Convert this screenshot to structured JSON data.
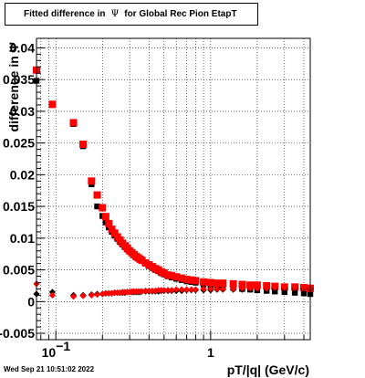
{
  "title": {
    "prefix": "Fitted difference in",
    "symbol": "Ψ",
    "suffix": "for Global Rec Pion EtapT"
  },
  "timestamp": "Wed Sep 21 10:51:02 2022",
  "chart_data": {
    "type": "scatter",
    "title": "Fitted difference in Ψ for Global Rec Pion EtapT",
    "xlabel": "pT/|q| (GeV/c)",
    "ylabel": "difference in Ψ",
    "x_scale": "log",
    "xlim": [
      0.075,
      4.4
    ],
    "ylim": [
      -0.006,
      0.0415
    ],
    "grid": true,
    "y_ticks": [
      -0.005,
      0,
      0.005,
      0.01,
      0.015,
      0.02,
      0.025,
      0.03,
      0.035,
      0.04
    ],
    "y_tick_labels": [
      "-0.005",
      "0",
      "0.005",
      "0.01",
      "0.015",
      "0.02",
      "0.025",
      "0.03",
      "0.035",
      "0.04"
    ],
    "x_tick_labels": [
      {
        "value": 0.1,
        "base": "10",
        "exp": "−1"
      },
      {
        "value": 1,
        "base": "1",
        "exp": ""
      }
    ],
    "series": [
      {
        "marker": "square",
        "color": "#000000",
        "x": [
          0.075,
          0.095,
          0.13,
          0.15,
          0.17,
          0.185,
          0.2,
          0.21,
          0.22,
          0.23,
          0.24,
          0.25,
          0.26,
          0.27,
          0.28,
          0.29,
          0.3,
          0.31,
          0.32,
          0.33,
          0.34,
          0.35,
          0.36,
          0.38,
          0.4,
          0.42,
          0.44,
          0.46,
          0.48,
          0.5,
          0.53,
          0.56,
          0.6,
          0.65,
          0.7,
          0.75,
          0.8,
          0.9,
          1.0,
          1.1,
          1.2,
          1.4,
          1.6,
          1.8,
          2.0,
          2.3,
          2.6,
          3.0,
          3.5,
          4.0,
          4.4
        ],
        "y": [
          0.0348,
          0.031,
          0.028,
          0.0245,
          0.0185,
          0.015,
          0.0135,
          0.0125,
          0.0117,
          0.011,
          0.0104,
          0.0099,
          0.0094,
          0.009,
          0.0086,
          0.0082,
          0.0079,
          0.0076,
          0.0073,
          0.007,
          0.0068,
          0.0066,
          0.0064,
          0.006,
          0.0056,
          0.0053,
          0.005,
          0.0048,
          0.0045,
          0.0043,
          0.004,
          0.0038,
          0.0036,
          0.0034,
          0.0032,
          0.0031,
          0.003,
          0.0027,
          0.0025,
          0.0024,
          0.0023,
          0.0022,
          0.002,
          0.0019,
          0.0018,
          0.0017,
          0.0016,
          0.0015,
          0.0014,
          0.0013,
          0.0012
        ]
      },
      {
        "marker": "square",
        "color": "#ff0000",
        "x": [
          0.075,
          0.095,
          0.13,
          0.15,
          0.17,
          0.185,
          0.2,
          0.21,
          0.22,
          0.23,
          0.24,
          0.25,
          0.26,
          0.27,
          0.28,
          0.29,
          0.3,
          0.31,
          0.32,
          0.33,
          0.34,
          0.35,
          0.36,
          0.38,
          0.4,
          0.42,
          0.44,
          0.46,
          0.48,
          0.5,
          0.53,
          0.56,
          0.6,
          0.65,
          0.7,
          0.75,
          0.8,
          0.9,
          1.0,
          1.1,
          1.2,
          1.4,
          1.6,
          1.8,
          2.0,
          2.3,
          2.6,
          3.0,
          3.5,
          4.0,
          4.4
        ],
        "y": [
          0.0365,
          0.0311,
          0.0282,
          0.0248,
          0.019,
          0.0168,
          0.0148,
          0.0134,
          0.0123,
          0.0114,
          0.0108,
          0.0102,
          0.0097,
          0.0092,
          0.0088,
          0.0084,
          0.008,
          0.0077,
          0.0074,
          0.0071,
          0.0069,
          0.0067,
          0.0065,
          0.0061,
          0.0058,
          0.0055,
          0.0052,
          0.005,
          0.0047,
          0.0045,
          0.0042,
          0.0041,
          0.0039,
          0.0037,
          0.0035,
          0.0034,
          0.0033,
          0.0031,
          0.003,
          0.0029,
          0.0029,
          0.0028,
          0.0027,
          0.0026,
          0.0026,
          0.0025,
          0.0024,
          0.0023,
          0.0023,
          0.0022,
          0.0021
        ]
      },
      {
        "marker": "diamond",
        "color": "#000000",
        "x": [
          0.075,
          0.095,
          0.13,
          0.15,
          0.17,
          0.185,
          0.2,
          0.21,
          0.22,
          0.23,
          0.24,
          0.25,
          0.26,
          0.27,
          0.28,
          0.29,
          0.3,
          0.31,
          0.32,
          0.33,
          0.34,
          0.35,
          0.36,
          0.38,
          0.4,
          0.42,
          0.44,
          0.46,
          0.48,
          0.5,
          0.53,
          0.56,
          0.6,
          0.65,
          0.7,
          0.75,
          0.8,
          0.9,
          1.0,
          1.1,
          1.2,
          1.4,
          1.6,
          1.8,
          2.0,
          2.3,
          2.6,
          3.0,
          3.5,
          4.0,
          4.4
        ],
        "y": [
          0.0012,
          0.0015,
          0.001,
          0.001,
          0.0011,
          0.0012,
          0.0012,
          0.0013,
          0.0013,
          0.0013,
          0.0014,
          0.0014,
          0.0014,
          0.0014,
          0.0014,
          0.0015,
          0.0015,
          0.0015,
          0.0015,
          0.0015,
          0.0015,
          0.0015,
          0.0016,
          0.0016,
          0.0016,
          0.0016,
          0.0016,
          0.0016,
          0.0017,
          0.0017,
          0.0017,
          0.0017,
          0.0017,
          0.0017,
          0.0018,
          0.0018,
          0.0018,
          0.0018,
          0.0018,
          0.0019,
          0.0019,
          0.0019,
          0.0019,
          0.0019,
          0.002,
          0.002,
          0.002,
          0.002,
          0.0021,
          0.0021,
          0.0021
        ]
      },
      {
        "marker": "diamond",
        "color": "#ff0000",
        "x": [
          0.075,
          0.095,
          0.13,
          0.15,
          0.17,
          0.185,
          0.2,
          0.21,
          0.22,
          0.23,
          0.24,
          0.25,
          0.26,
          0.27,
          0.28,
          0.29,
          0.3,
          0.31,
          0.32,
          0.33,
          0.34,
          0.35,
          0.36,
          0.38,
          0.4,
          0.42,
          0.44,
          0.46,
          0.48,
          0.5,
          0.53,
          0.56,
          0.6,
          0.65,
          0.7,
          0.75,
          0.8,
          0.9,
          1.0,
          1.1,
          1.2,
          1.4,
          1.6,
          1.8,
          2.0,
          2.3,
          2.6,
          3.0,
          3.5,
          4.0,
          4.4
        ],
        "y": [
          0.0028,
          0.001,
          0.0008,
          0.0009,
          0.001,
          0.0011,
          0.0012,
          0.0013,
          0.0013,
          0.0013,
          0.0014,
          0.0014,
          0.0014,
          0.0015,
          0.0015,
          0.0015,
          0.0015,
          0.0016,
          0.0016,
          0.0016,
          0.0016,
          0.0016,
          0.0016,
          0.0017,
          0.0017,
          0.0017,
          0.0017,
          0.0018,
          0.0018,
          0.0018,
          0.0018,
          0.0018,
          0.0019,
          0.0019,
          0.0019,
          0.0019,
          0.0019,
          0.002,
          0.002,
          0.002,
          0.002,
          0.002,
          0.0021,
          0.0021,
          0.0021,
          0.0021,
          0.0022,
          0.0022,
          0.0022,
          0.0022,
          0.0022
        ]
      }
    ]
  }
}
